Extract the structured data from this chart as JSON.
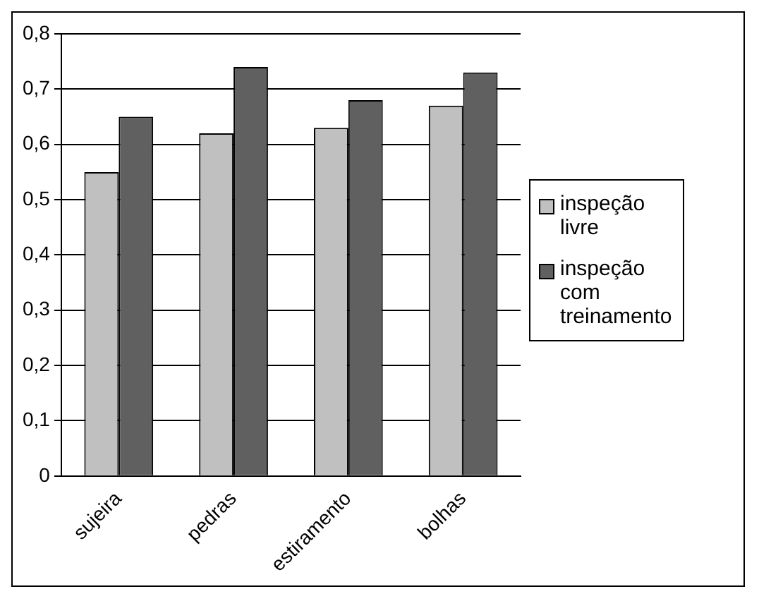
{
  "chart_data": {
    "type": "bar",
    "categories": [
      "sujeira",
      "pedras",
      "estiramento",
      "bolhas"
    ],
    "series": [
      {
        "name": "inspeção livre",
        "color": "#c0c0c0",
        "values": [
          0.55,
          0.62,
          0.63,
          0.67
        ]
      },
      {
        "name": "inspeção com treinamento",
        "color": "#606060",
        "values": [
          0.65,
          0.74,
          0.68,
          0.73
        ]
      }
    ],
    "ylim": [
      0,
      0.8
    ],
    "yticks": [
      0,
      {
        "value": 0.1,
        "label": "0,1"
      },
      {
        "value": 0.2,
        "label": "0,2"
      },
      {
        "value": 0.3,
        "label": "0,3"
      },
      {
        "value": 0.4,
        "label": "0,4"
      },
      {
        "value": 0.5,
        "label": "0,5"
      },
      {
        "value": 0.6,
        "label": "0,6"
      },
      {
        "value": 0.7,
        "label": "0,7"
      },
      {
        "value": 0.8,
        "label": "0,8"
      }
    ],
    "grid": "y",
    "legend": "right"
  }
}
